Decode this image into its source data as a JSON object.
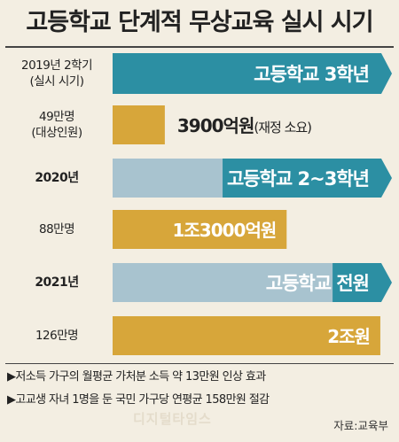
{
  "title": "고등학교 단계적 무상교육 실시 시기",
  "rows": [
    {
      "label1": "2019년 2학기",
      "label2": "(실시 시기)",
      "bold": false,
      "kind": "phase",
      "value": "고등학교 3학년"
    },
    {
      "label1": "49만명",
      "label2": "(대상인원)",
      "bold": false,
      "kind": "cost",
      "value": "3900억원",
      "suffix": "(재정 소요)"
    },
    {
      "label1": "2020년",
      "label2": "",
      "bold": true,
      "kind": "phase",
      "value": "고등학교 2~3학년"
    },
    {
      "label1": "88만명",
      "label2": "",
      "bold": false,
      "kind": "cost",
      "value": "1조3000억원",
      "suffix": ""
    },
    {
      "label1": "2021년",
      "label2": "",
      "bold": true,
      "kind": "phase",
      "value": "고등학교 전원"
    },
    {
      "label1": "126만명",
      "label2": "",
      "bold": false,
      "kind": "cost",
      "value": "2조원",
      "suffix": ""
    }
  ],
  "chart_data": {
    "type": "bar",
    "title": "고등학교 단계적 무상교육 실시 시기",
    "series": [
      {
        "name": "",
        "categories": [
          "49만명",
          "88만명",
          "126만명"
        ],
        "values": [
          3900,
          13000,
          20000
        ]
      },
      {
        "name": "",
        "categories": [
          "2019년 2학기",
          "2020년",
          "2021년"
        ],
        "values": [
          1,
          2,
          3
        ]
      }
    ],
    "data_labels": [
      "3900억원",
      "1조3000억원",
      "2조원"
    ]
  },
  "notes": [
    "▶저소득 가구의 월평균 가처분 소득 약 13만원 인상 효과",
    "▶고교생 자녀 1명을 둔 국민 가구당 연평균 158만원 절감"
  ],
  "source": "자료:교육부",
  "watermark": "디지털타임스",
  "colors": {
    "teal": "#2c8fa3",
    "gold": "#d7a63a",
    "lightblue": "#a8c3cf",
    "bg": "#f3eee2"
  }
}
